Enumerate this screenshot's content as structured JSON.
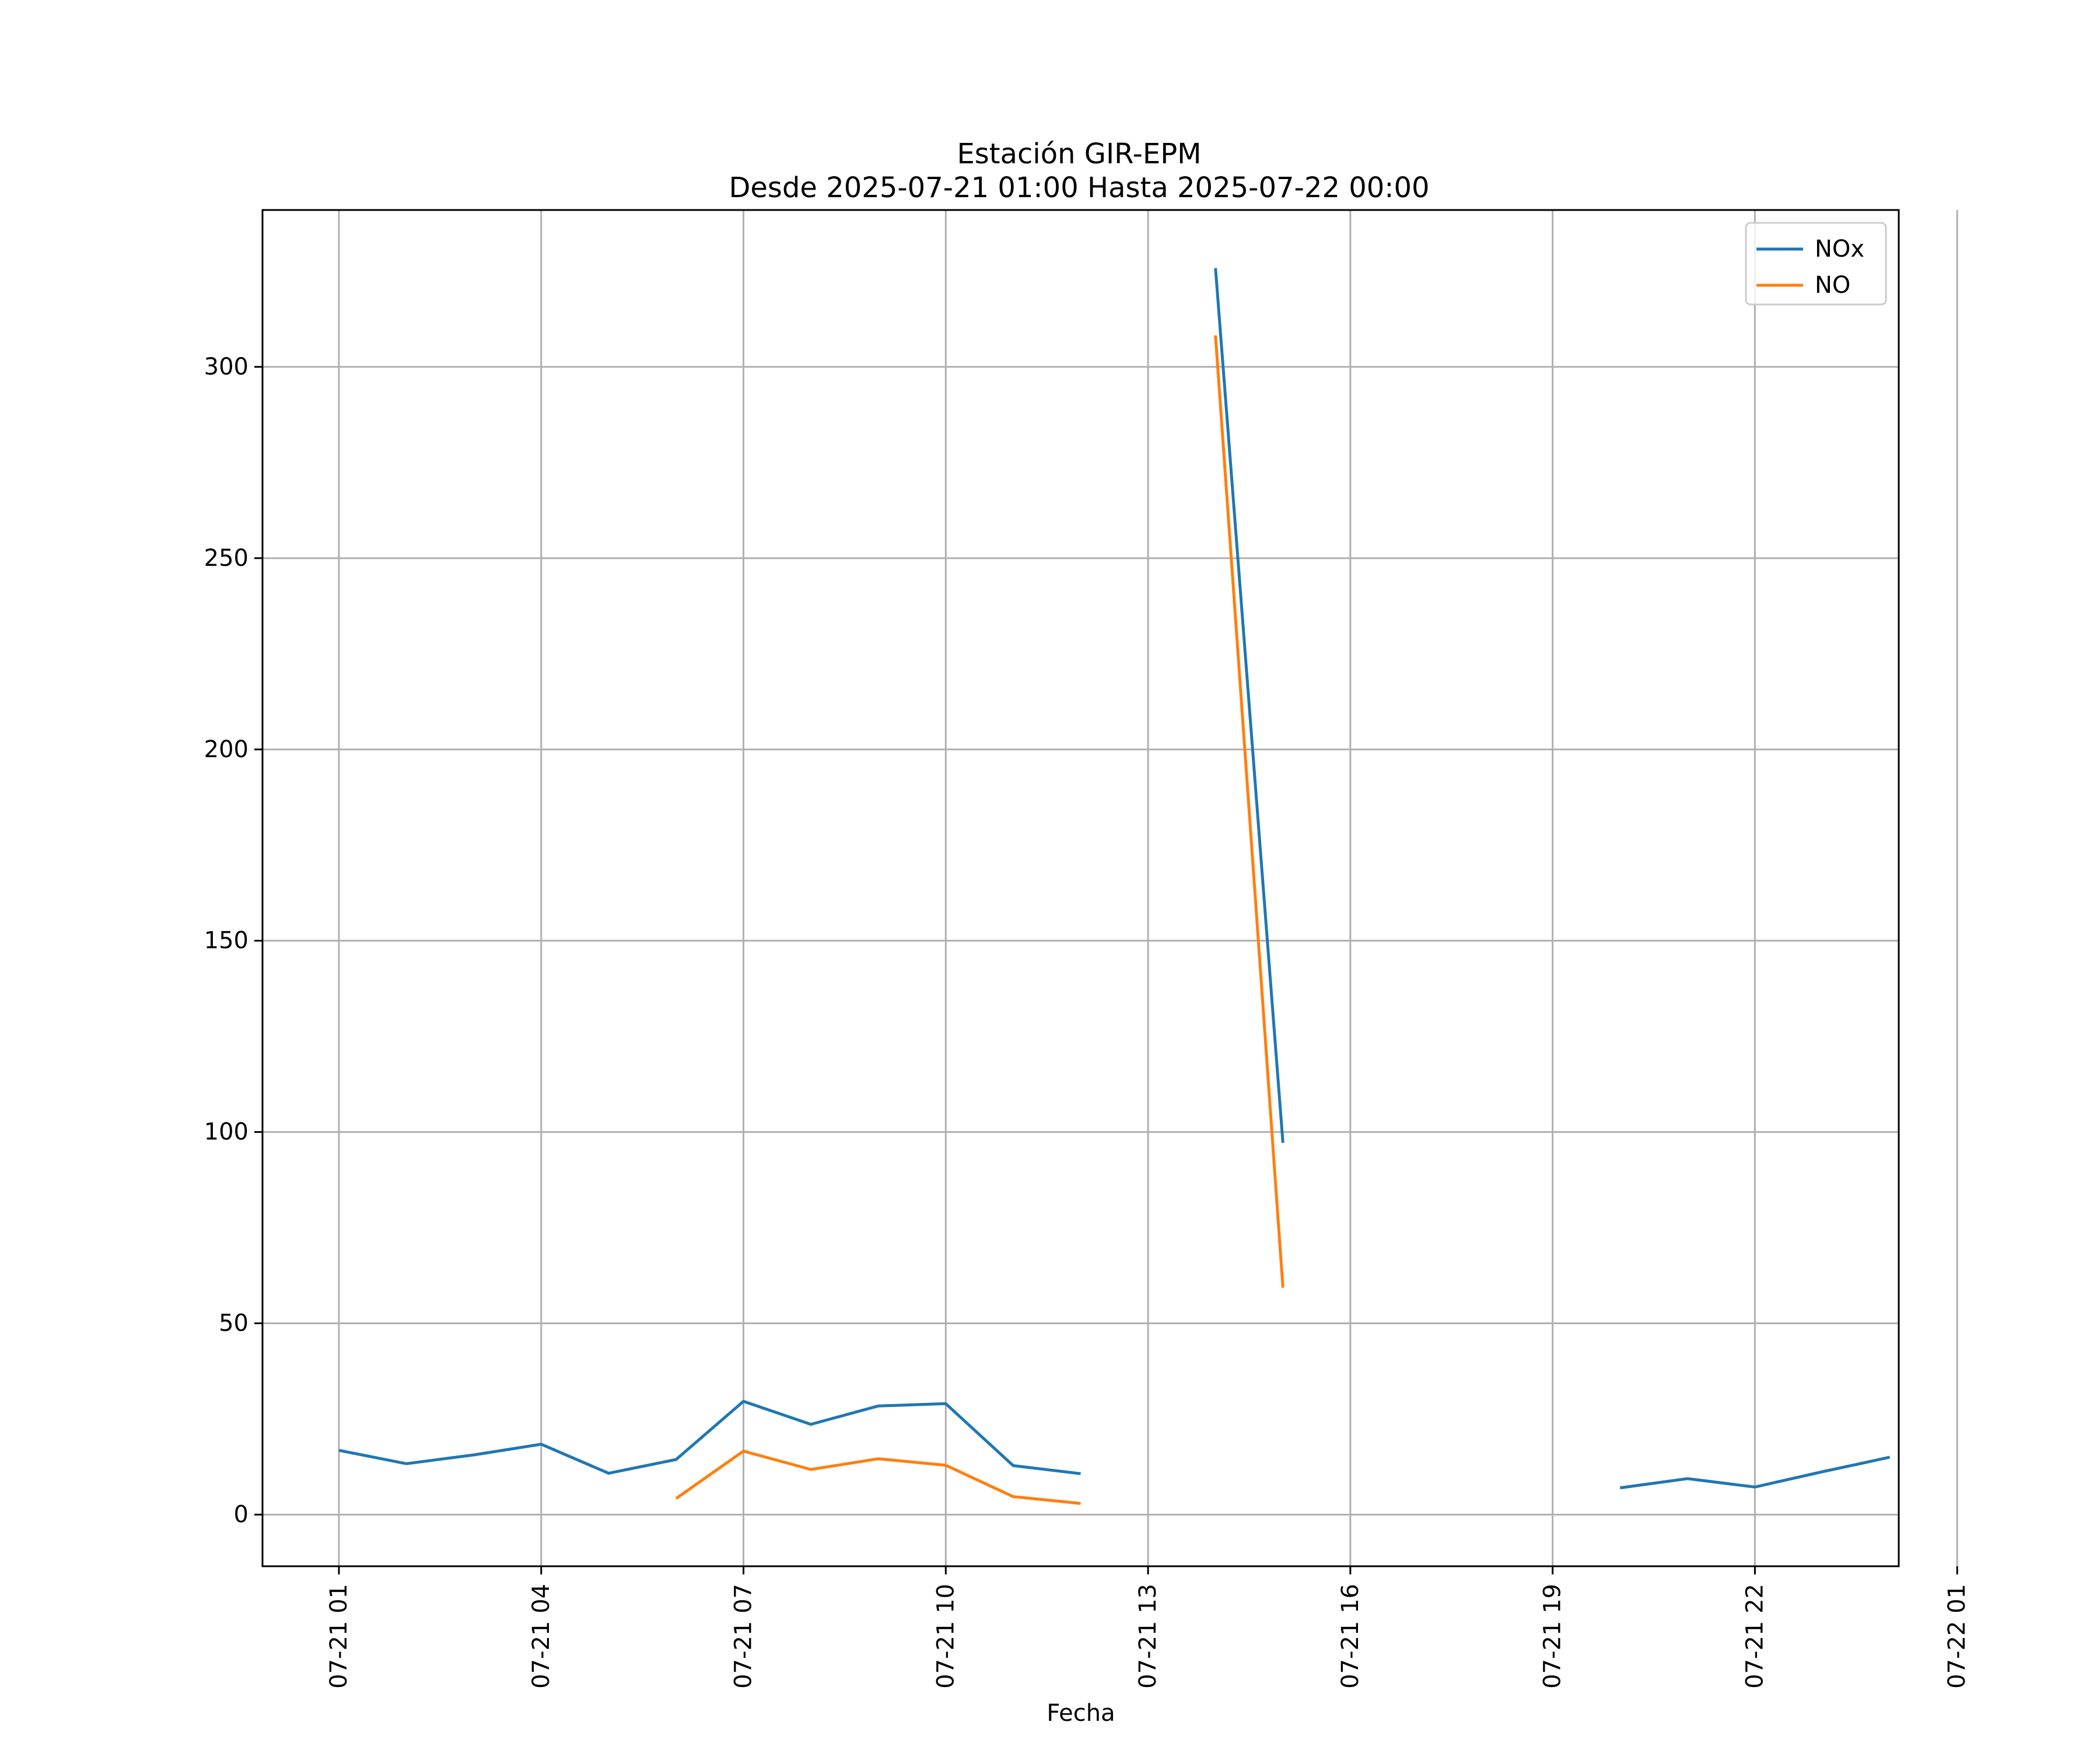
{
  "chart_data": {
    "type": "line",
    "title": "Estación GIR-EPM",
    "subtitle": "Desde 2025-07-21 01:00 Hasta 2025-07-22 00:00",
    "xlabel": "Fecha",
    "ylabel": "",
    "x_axis": "datetime",
    "xlim": [
      "2025-07-20 23:52",
      "2025-07-22 00:08"
    ],
    "ylim": [
      -13.5,
      341
    ],
    "x_ticks": [
      {
        "value": "2025-07-21 01:00",
        "label": "07-21 01"
      },
      {
        "value": "2025-07-21 04:00",
        "label": "07-21 04"
      },
      {
        "value": "2025-07-21 07:00",
        "label": "07-21 07"
      },
      {
        "value": "2025-07-21 10:00",
        "label": "07-21 10"
      },
      {
        "value": "2025-07-21 13:00",
        "label": "07-21 13"
      },
      {
        "value": "2025-07-21 16:00",
        "label": "07-21 16"
      },
      {
        "value": "2025-07-21 19:00",
        "label": "07-21 19"
      },
      {
        "value": "2025-07-21 22:00",
        "label": "07-21 22"
      },
      {
        "value": "2025-07-22 01:00",
        "label": "07-22 01"
      }
    ],
    "y_ticks": [
      0,
      50,
      100,
      150,
      200,
      250,
      300
    ],
    "grid": true,
    "legend_position": "top-right",
    "series": [
      {
        "name": "NOx",
        "color": "#1f77b4",
        "points": [
          {
            "x": "2025-07-21 01:00",
            "y": 16.8
          },
          {
            "x": "2025-07-21 02:00",
            "y": 13.3
          },
          {
            "x": "2025-07-21 03:00",
            "y": 15.6
          },
          {
            "x": "2025-07-21 04:00",
            "y": 18.4
          },
          {
            "x": "2025-07-21 05:00",
            "y": 10.8
          },
          {
            "x": "2025-07-21 06:00",
            "y": 14.4
          },
          {
            "x": "2025-07-21 07:00",
            "y": 29.6
          },
          {
            "x": "2025-07-21 08:00",
            "y": 23.6
          },
          {
            "x": "2025-07-21 09:00",
            "y": 28.4
          },
          {
            "x": "2025-07-21 10:00",
            "y": 29.0
          },
          {
            "x": "2025-07-21 11:00",
            "y": 12.8
          },
          {
            "x": "2025-07-21 12:00",
            "y": 10.7
          },
          {
            "x": "2025-07-21 13:00",
            "y": null
          },
          {
            "x": "2025-07-21 14:00",
            "y": 325.8
          },
          {
            "x": "2025-07-21 15:00",
            "y": 97.2
          },
          {
            "x": "2025-07-21 16:00",
            "y": null
          },
          {
            "x": "2025-07-21 17:00",
            "y": null
          },
          {
            "x": "2025-07-21 18:00",
            "y": null
          },
          {
            "x": "2025-07-21 19:00",
            "y": null
          },
          {
            "x": "2025-07-21 20:00",
            "y": 7.0
          },
          {
            "x": "2025-07-21 21:00",
            "y": 9.4
          },
          {
            "x": "2025-07-21 22:00",
            "y": 7.2
          },
          {
            "x": "2025-07-21 23:00",
            "y": 11.2
          },
          {
            "x": "2025-07-22 00:00",
            "y": 15.0
          }
        ]
      },
      {
        "name": "NO",
        "color": "#ff7f0e",
        "points": [
          {
            "x": "2025-07-21 01:00",
            "y": null
          },
          {
            "x": "2025-07-21 02:00",
            "y": null
          },
          {
            "x": "2025-07-21 03:00",
            "y": null
          },
          {
            "x": "2025-07-21 04:00",
            "y": null
          },
          {
            "x": "2025-07-21 05:00",
            "y": null
          },
          {
            "x": "2025-07-21 06:00",
            "y": 4.2
          },
          {
            "x": "2025-07-21 07:00",
            "y": 16.6
          },
          {
            "x": "2025-07-21 08:00",
            "y": 11.8
          },
          {
            "x": "2025-07-21 09:00",
            "y": 14.6
          },
          {
            "x": "2025-07-21 10:00",
            "y": 12.9
          },
          {
            "x": "2025-07-21 11:00",
            "y": 4.7
          },
          {
            "x": "2025-07-21 12:00",
            "y": 2.9
          },
          {
            "x": "2025-07-21 13:00",
            "y": null
          },
          {
            "x": "2025-07-21 14:00",
            "y": 308.2
          },
          {
            "x": "2025-07-21 15:00",
            "y": 59.3
          },
          {
            "x": "2025-07-21 16:00",
            "y": null
          },
          {
            "x": "2025-07-21 17:00",
            "y": null
          },
          {
            "x": "2025-07-21 18:00",
            "y": null
          },
          {
            "x": "2025-07-21 19:00",
            "y": null
          },
          {
            "x": "2025-07-21 20:00",
            "y": null
          },
          {
            "x": "2025-07-21 21:00",
            "y": null
          },
          {
            "x": "2025-07-21 22:00",
            "y": null
          },
          {
            "x": "2025-07-21 23:00",
            "y": null
          },
          {
            "x": "2025-07-22 00:00",
            "y": null
          }
        ]
      }
    ]
  }
}
